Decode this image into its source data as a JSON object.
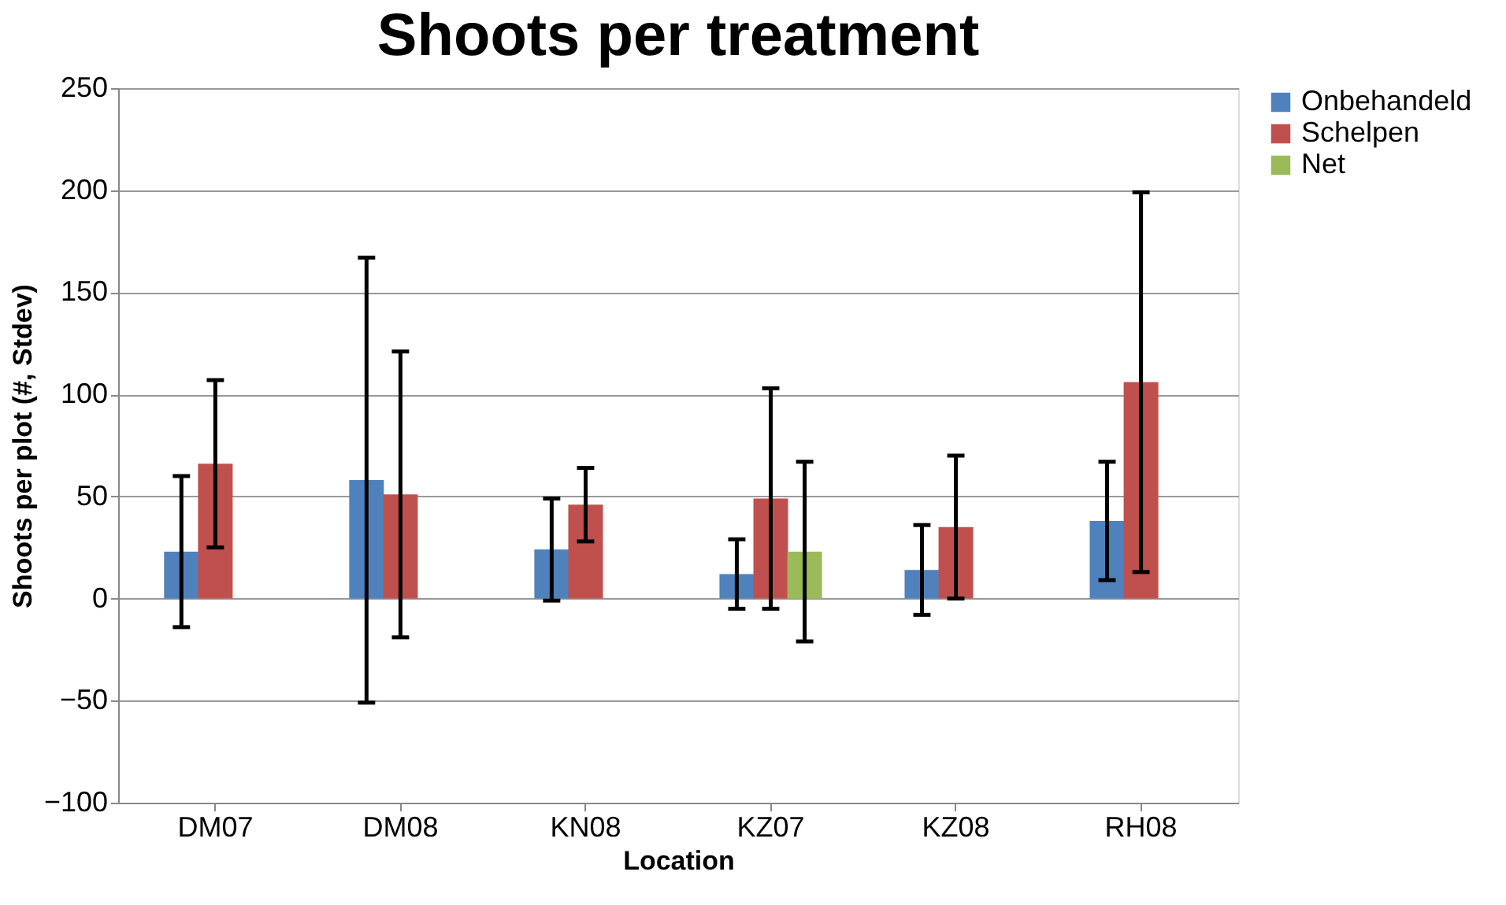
{
  "chart_data": {
    "type": "bar",
    "title": "Shoots per treatment",
    "xlabel": "Location",
    "ylabel": "Shoots per plot (#, Stdev)",
    "categories": [
      "DM07",
      "DM08",
      "KN08",
      "KZ07",
      "KZ08",
      "RH08"
    ],
    "series": [
      {
        "name": "Onbehandeld",
        "color": "#4f81bd",
        "values": [
          23,
          58,
          24,
          12,
          14,
          38
        ],
        "errors": [
          37,
          109,
          25,
          17,
          22,
          29
        ]
      },
      {
        "name": "Schelpen",
        "color": "#c0504d",
        "values": [
          66,
          51,
          46,
          49,
          35,
          106
        ],
        "errors": [
          41,
          70,
          18,
          54,
          35,
          93
        ]
      },
      {
        "name": "Net",
        "color": "#9bbb59",
        "values": [
          null,
          null,
          null,
          23,
          null,
          null
        ],
        "errors": [
          null,
          null,
          null,
          44,
          null,
          null
        ]
      }
    ],
    "ylim": [
      -100,
      250
    ],
    "yticks": [
      -100,
      -50,
      0,
      50,
      100,
      150,
      200,
      250
    ],
    "grid": "y",
    "legend": "right"
  }
}
